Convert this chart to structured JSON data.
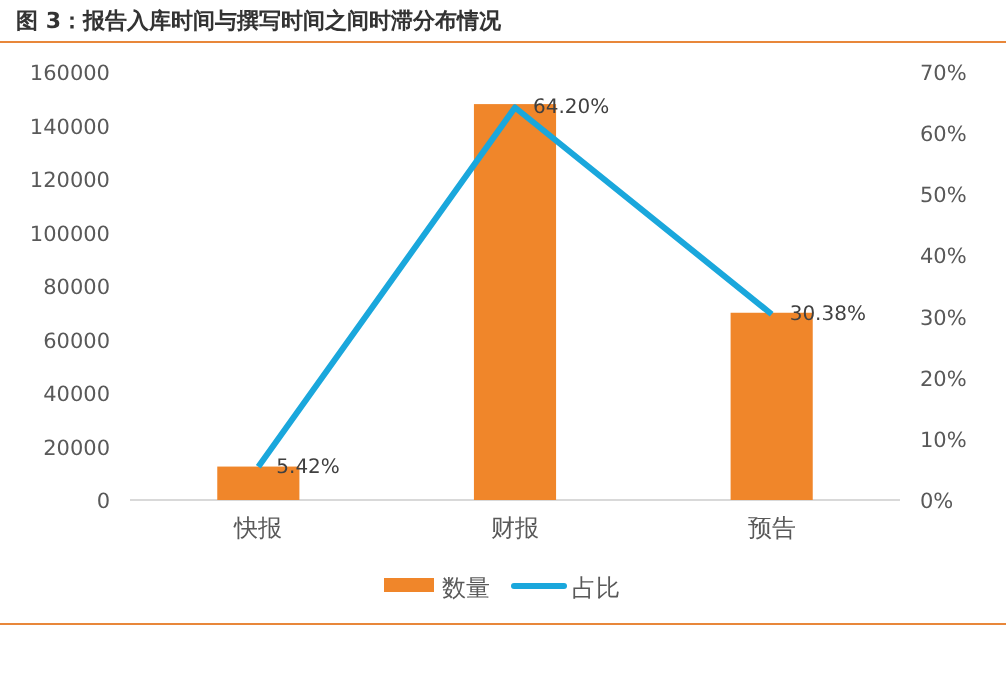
{
  "chart_data": {
    "type": "bar",
    "title": "图 3：报告入库时间与撰写时间之间时滞分布情况",
    "categories": [
      "快报",
      "财报",
      "预告"
    ],
    "series": [
      {
        "name": "数量",
        "color": "#f0862a",
        "values": [
          12500,
          148000,
          70000
        ]
      },
      {
        "name": "占比",
        "type": "line",
        "axis": "y2",
        "color": "#1aa7dc",
        "values": [
          5.42,
          64.2,
          30.38
        ],
        "value_labels": [
          "5.42%",
          "64.20%",
          "30.38%"
        ]
      }
    ],
    "ylim": [
      0,
      160000
    ],
    "yticks": [
      0,
      20000,
      40000,
      60000,
      80000,
      100000,
      120000,
      140000,
      160000
    ],
    "y2lim": [
      0,
      70
    ],
    "y2ticks": [
      {
        "value": 0,
        "label": "0%"
      },
      {
        "value": 10,
        "label": "10%"
      },
      {
        "value": 20,
        "label": "20%"
      },
      {
        "value": 30,
        "label": "30%"
      },
      {
        "value": 40,
        "label": "40%"
      },
      {
        "value": 50,
        "label": "50%"
      },
      {
        "value": 60,
        "label": "60%"
      },
      {
        "value": 70,
        "label": "70%"
      }
    ],
    "legend": "bottom",
    "marker": "none",
    "line_style": "solid"
  }
}
